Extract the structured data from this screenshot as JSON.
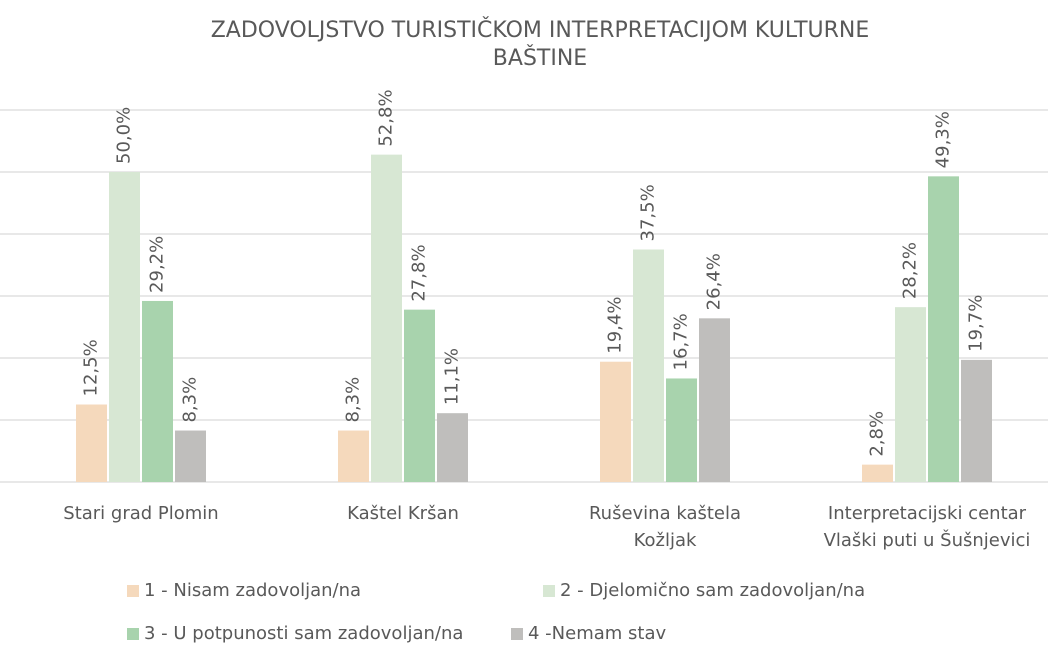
{
  "chart_data": {
    "type": "bar",
    "title": "ZADOVOLJSTVO TURISTIČKOM INTERPRETACIJOM KULTURNE\nBAŠTINE",
    "categories": [
      "Stari grad Plomin",
      "Kaštel Kršan",
      "Ruševina kaštela\nKožljak",
      "Interpretacijski centar\nVlaški puti u Šušnjevici"
    ],
    "series": [
      {
        "name": "1 - Nisam zadovoljan/na",
        "color": "#f5d9bc",
        "values": [
          12.5,
          8.3,
          19.4,
          2.8
        ],
        "value_labels": [
          "12,5%",
          "8,3%",
          "19,4%",
          "2,8%"
        ]
      },
      {
        "name": "2 - Djelomično sam zadovoljan/na",
        "color": "#d7e7d3",
        "values": [
          50.0,
          52.8,
          37.5,
          28.2
        ],
        "value_labels": [
          "50,0%",
          "52,8%",
          "37,5%",
          "28,2%"
        ]
      },
      {
        "name": "3 - U potpunosti sam zadovoljan/na",
        "color": "#a8d3ad",
        "values": [
          29.2,
          27.8,
          16.7,
          49.3
        ],
        "value_labels": [
          "29,2%",
          "27,8%",
          "16,7%",
          "49,3%"
        ]
      },
      {
        "name": "4 -Nemam stav",
        "color": "#bfbebc",
        "values": [
          8.3,
          11.1,
          26.4,
          19.7
        ],
        "value_labels": [
          "8,3%",
          "11,1%",
          "26,4%",
          "19,7%"
        ]
      }
    ],
    "ylim": [
      0,
      60
    ],
    "yticks": [
      0,
      10,
      20,
      30,
      40,
      50,
      60
    ],
    "grid": true,
    "legend": "bottom"
  }
}
